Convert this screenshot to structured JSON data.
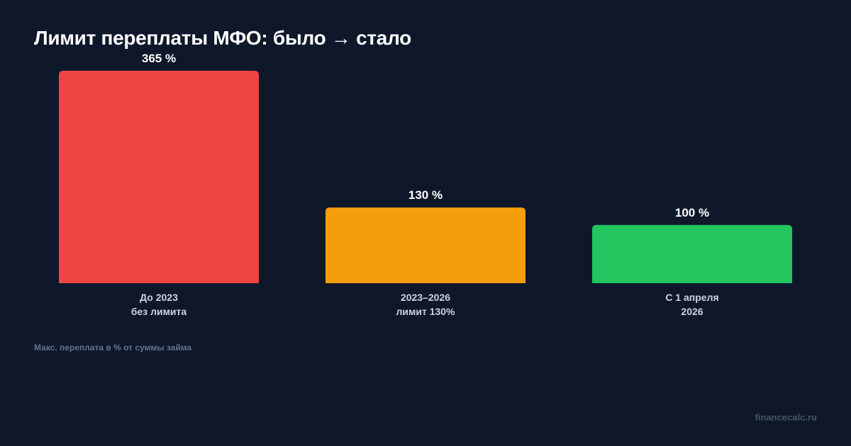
{
  "title": "Лимит переплаты МФО: было → стало",
  "note": "Макс. переплата в % от суммы займа",
  "source": "financecalc.ru",
  "chart_data": {
    "type": "bar",
    "title": "Лимит переплаты МФО: было → стало",
    "xlabel": "",
    "ylabel": "",
    "ylim": [
      0,
      365
    ],
    "grid": false,
    "categories": [
      [
        "До 2023",
        "без лимита"
      ],
      [
        "2023–2026",
        "лимит 130%"
      ],
      [
        "С 1 апреля",
        "2026"
      ]
    ],
    "values": [
      365,
      130,
      100
    ],
    "value_labels": [
      "365 %",
      "130 %",
      "100 %"
    ],
    "colors": [
      "#ef4444",
      "#f59e0b",
      "#22c55e"
    ]
  }
}
